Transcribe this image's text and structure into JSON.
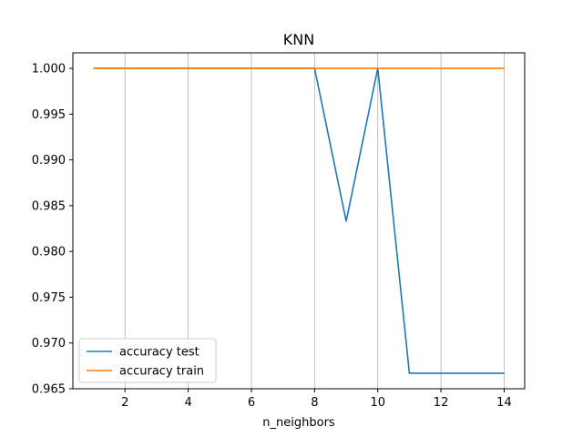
{
  "chart_data": {
    "type": "line",
    "title": "KNN",
    "xlabel": "n_neighbors",
    "ylabel": "",
    "x": [
      1,
      2,
      3,
      4,
      5,
      6,
      7,
      8,
      9,
      10,
      11,
      12,
      13,
      14
    ],
    "xticks": [
      2,
      4,
      6,
      8,
      10,
      12,
      14
    ],
    "yticks": [
      0.965,
      0.97,
      0.975,
      0.98,
      0.985,
      0.99,
      0.995,
      1.0
    ],
    "ytick_labels": [
      "0.965",
      "0.970",
      "0.975",
      "0.980",
      "0.985",
      "0.990",
      "0.995",
      "1.000"
    ],
    "xlim": [
      0.35,
      14.65
    ],
    "ylim": [
      0.965,
      1.0017
    ],
    "grid": "vertical",
    "legend_position": "lower-left",
    "series": [
      {
        "name": "accuracy test",
        "color": "#1f77b4",
        "values": [
          1.0,
          1.0,
          1.0,
          1.0,
          1.0,
          1.0,
          1.0,
          1.0,
          0.9833,
          1.0,
          0.9667,
          0.9667,
          0.9667,
          0.9667
        ]
      },
      {
        "name": "accuracy train",
        "color": "#ff7f0e",
        "values": [
          1.0,
          1.0,
          1.0,
          1.0,
          1.0,
          1.0,
          1.0,
          1.0,
          1.0,
          1.0,
          1.0,
          1.0,
          1.0,
          1.0
        ]
      }
    ]
  }
}
